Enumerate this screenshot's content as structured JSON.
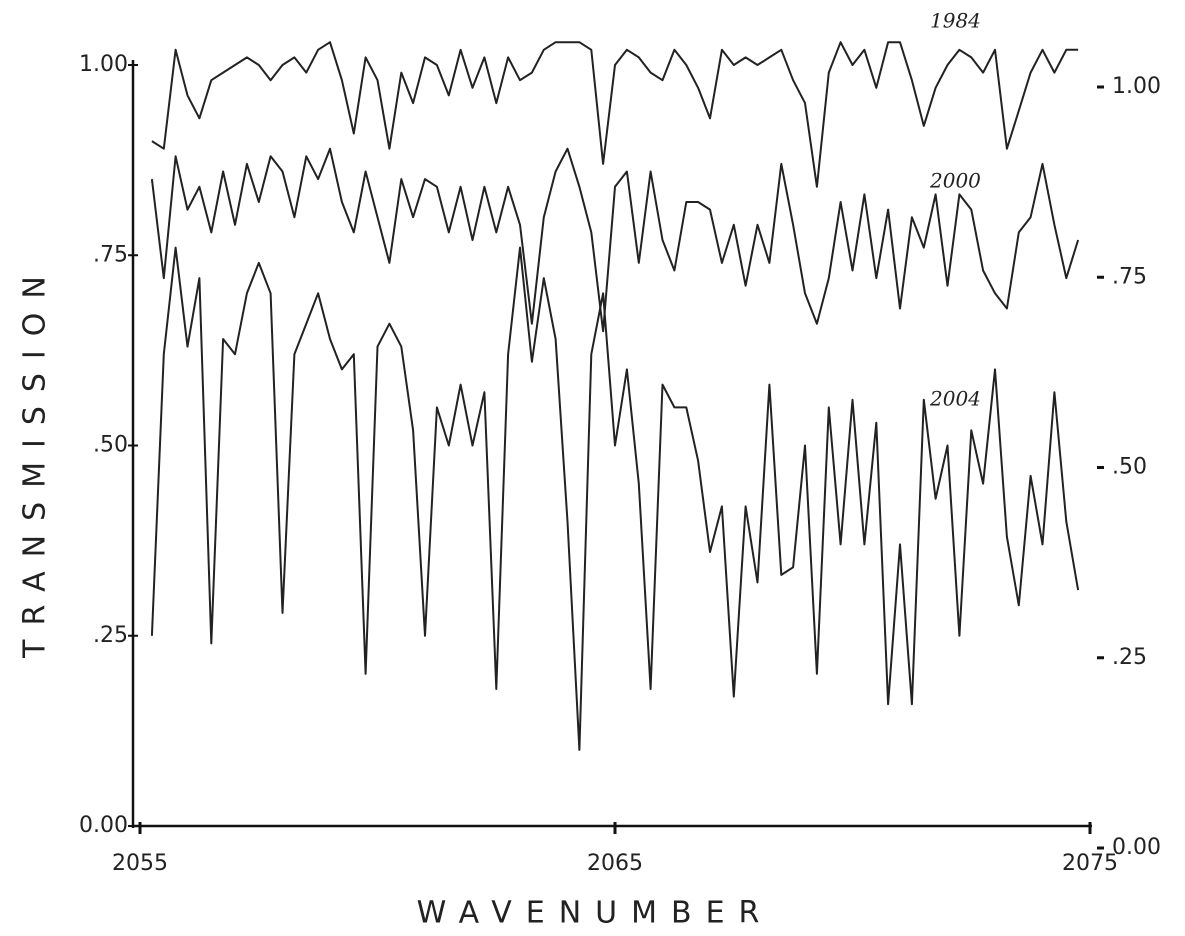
{
  "chart_data": {
    "type": "line",
    "xlabel": "WAVENUMBER",
    "ylabel": "TRANSMISSION",
    "xlim": [
      2055,
      2075
    ],
    "xticks": [
      2055,
      2065,
      2075
    ],
    "ylim": [
      0,
      1
    ],
    "yticks": [
      {
        "value": 0,
        "label": "0.00"
      },
      {
        "value": 0.25,
        "label": ".25"
      },
      {
        "value": 0.5,
        "label": ".50"
      },
      {
        "value": 0.75,
        "label": ".75"
      },
      {
        "value": 1,
        "label": "1.00"
      }
    ],
    "y2lim": [
      0,
      1
    ],
    "y2ticks": [
      {
        "value": 0,
        "label": "0.00"
      },
      {
        "value": 0.25,
        "label": ".25"
      },
      {
        "value": 0.5,
        "label": ".50"
      },
      {
        "value": 0.75,
        "label": ".75"
      },
      {
        "value": 1,
        "label": "1.00"
      }
    ],
    "x": [
      2055.25,
      2055.5,
      2055.75,
      2056,
      2056.25,
      2056.5,
      2056.75,
      2057,
      2057.25,
      2057.5,
      2057.75,
      2058,
      2058.25,
      2058.5,
      2058.75,
      2059,
      2059.25,
      2059.5,
      2059.75,
      2060,
      2060.25,
      2060.5,
      2060.75,
      2061,
      2061.25,
      2061.5,
      2061.75,
      2062,
      2062.25,
      2062.5,
      2062.75,
      2063,
      2063.25,
      2063.5,
      2063.75,
      2064,
      2064.25,
      2064.5,
      2064.75,
      2065,
      2065.25,
      2065.5,
      2065.75,
      2066,
      2066.25,
      2066.5,
      2066.75,
      2067,
      2067.25,
      2067.5,
      2067.75,
      2068,
      2068.25,
      2068.5,
      2068.75,
      2069,
      2069.25,
      2069.5,
      2069.75,
      2070,
      2070.25,
      2070.5,
      2070.75,
      2071,
      2071.25,
      2071.5,
      2071.75,
      2072,
      2072.25,
      2072.5,
      2072.75,
      2073,
      2073.25,
      2073.5,
      2073.75,
      2074,
      2074.25,
      2074.5,
      2074.75
    ],
    "series": [
      {
        "name": "1984",
        "color": "#222222",
        "values": [
          0.9,
          0.89,
          1.02,
          0.96,
          0.93,
          0.98,
          0.99,
          1.0,
          1.01,
          1.0,
          0.98,
          1.0,
          1.01,
          0.99,
          1.02,
          1.03,
          0.98,
          0.91,
          1.01,
          0.98,
          0.89,
          0.99,
          0.95,
          1.01,
          1.0,
          0.96,
          1.02,
          0.97,
          1.01,
          0.95,
          1.01,
          0.98,
          0.99,
          1.02,
          1.03,
          1.03,
          1.03,
          1.02,
          0.87,
          1.0,
          1.02,
          1.01,
          0.99,
          0.98,
          1.02,
          1.0,
          0.97,
          0.93,
          1.02,
          1.0,
          1.01,
          1.0,
          1.01,
          1.02,
          0.98,
          0.95,
          0.84,
          0.99,
          1.03,
          1.0,
          1.02,
          0.97,
          1.03,
          1.03,
          0.98,
          0.92,
          0.97,
          1.0,
          1.02,
          1.01,
          0.99,
          1.02,
          0.89,
          0.94,
          0.99,
          1.02,
          0.99,
          1.02,
          1.02
        ]
      },
      {
        "name": "2000",
        "color": "#222222",
        "values": [
          0.85,
          0.72,
          0.88,
          0.81,
          0.84,
          0.78,
          0.86,
          0.79,
          0.87,
          0.82,
          0.88,
          0.86,
          0.8,
          0.88,
          0.85,
          0.89,
          0.82,
          0.78,
          0.86,
          0.8,
          0.74,
          0.85,
          0.8,
          0.85,
          0.84,
          0.78,
          0.84,
          0.77,
          0.84,
          0.78,
          0.84,
          0.79,
          0.66,
          0.8,
          0.86,
          0.89,
          0.84,
          0.78,
          0.65,
          0.84,
          0.86,
          0.74,
          0.86,
          0.77,
          0.73,
          0.82,
          0.82,
          0.81,
          0.74,
          0.79,
          0.71,
          0.79,
          0.74,
          0.87,
          0.79,
          0.7,
          0.66,
          0.72,
          0.82,
          0.73,
          0.83,
          0.72,
          0.81,
          0.68,
          0.8,
          0.76,
          0.83,
          0.71,
          0.83,
          0.81,
          0.73,
          0.7,
          0.68,
          0.78,
          0.8,
          0.87,
          0.79,
          0.72,
          0.77
        ]
      },
      {
        "name": "2004",
        "color": "#222222",
        "values": [
          0.25,
          0.62,
          0.76,
          0.63,
          0.72,
          0.24,
          0.64,
          0.62,
          0.7,
          0.74,
          0.7,
          0.28,
          0.62,
          0.66,
          0.7,
          0.64,
          0.6,
          0.62,
          0.2,
          0.63,
          0.66,
          0.63,
          0.52,
          0.25,
          0.55,
          0.5,
          0.58,
          0.5,
          0.57,
          0.18,
          0.62,
          0.76,
          0.61,
          0.72,
          0.64,
          0.4,
          0.1,
          0.62,
          0.7,
          0.5,
          0.6,
          0.45,
          0.18,
          0.58,
          0.55,
          0.55,
          0.48,
          0.36,
          0.42,
          0.17,
          0.42,
          0.32,
          0.58,
          0.33,
          0.34,
          0.5,
          0.2,
          0.55,
          0.37,
          0.56,
          0.37,
          0.53,
          0.16,
          0.37,
          0.16,
          0.56,
          0.43,
          0.5,
          0.25,
          0.52,
          0.45,
          0.6,
          0.38,
          0.29,
          0.46,
          0.37,
          0.57,
          0.4,
          0.31
        ]
      }
    ]
  }
}
